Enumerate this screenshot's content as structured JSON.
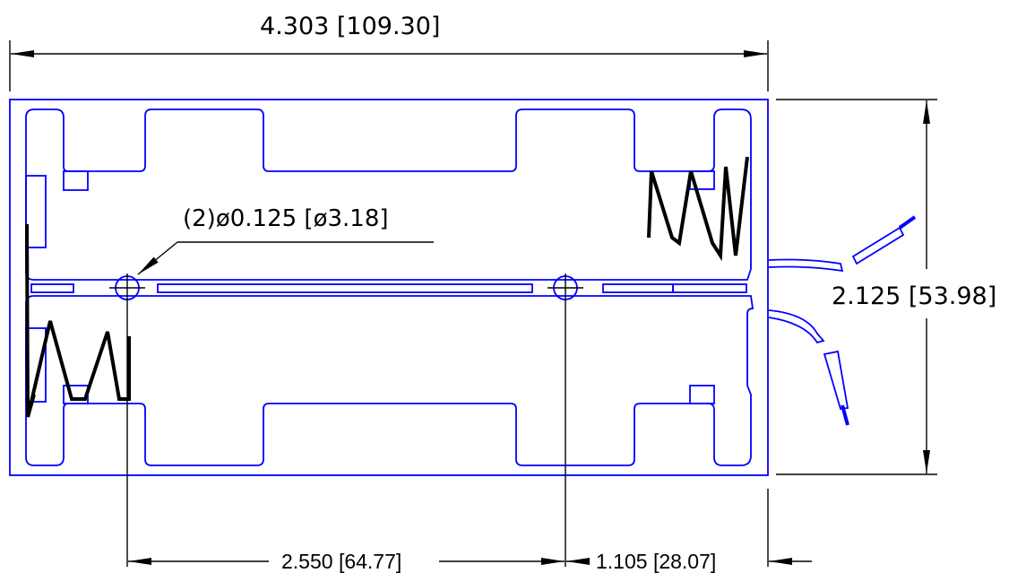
{
  "dimensions": {
    "overall_length": "4.303  [109.30]",
    "overall_width": "2.125  [53.98]",
    "hole_spec": "(2)ø0.125  [ø3.18]",
    "hole_spacing": "2.550 [64.77]",
    "hole_to_edge": "1.105 [28.07]"
  },
  "colors": {
    "outline": "#0000ff",
    "spring": "#000000",
    "dimension": "#000000"
  }
}
